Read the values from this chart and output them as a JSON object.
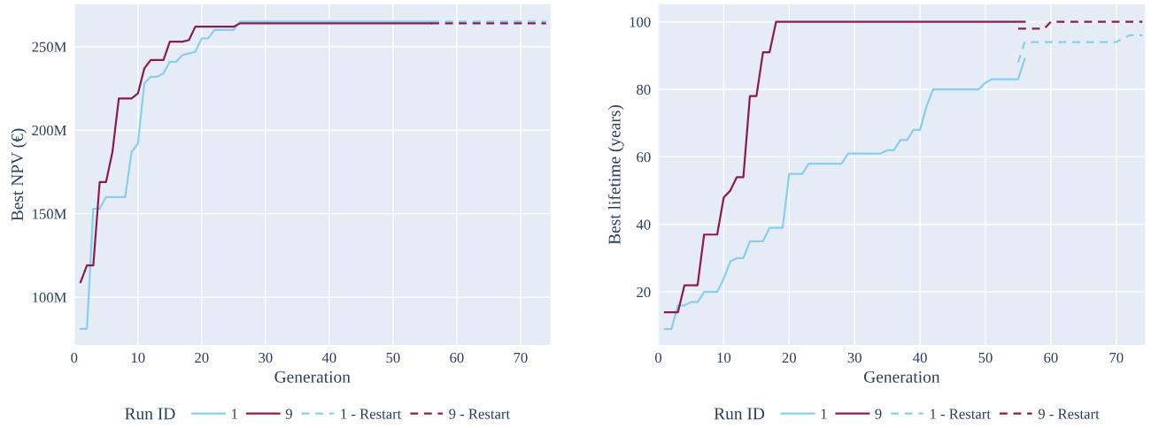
{
  "chart_data": [
    {
      "type": "line",
      "xlabel": "Generation",
      "ylabel": "Best NPV (€)",
      "legend_title": "Run ID",
      "legend": "bottom",
      "grid": true,
      "marker": "none",
      "xlim": [
        0,
        74.7
      ],
      "xticks": [
        0,
        10,
        20,
        30,
        40,
        50,
        60,
        70
      ],
      "ylim": [
        71.4,
        275.4
      ],
      "yticks": [
        {
          "value": 100,
          "label": "100M"
        },
        {
          "value": 150,
          "label": "150M"
        },
        {
          "value": 200,
          "label": "200M"
        },
        {
          "value": 250,
          "label": "250M"
        }
      ],
      "series": [
        {
          "name": "1",
          "color": "#88cfee",
          "line_style": "solid",
          "x": [
            1,
            2,
            3,
            4,
            5,
            8,
            9,
            10,
            11,
            12,
            13,
            14,
            15,
            16,
            17,
            18,
            19,
            20,
            21,
            22,
            25,
            26,
            56
          ],
          "values": [
            81,
            81,
            153,
            153,
            160,
            160,
            187,
            192,
            228,
            232,
            232,
            234,
            241,
            241,
            245,
            246,
            247,
            255,
            255,
            260,
            260,
            265,
            265
          ]
        },
        {
          "name": "9",
          "color": "#8c1c4f",
          "line_style": "solid",
          "x": [
            1,
            2,
            3,
            4,
            5,
            6,
            7,
            9,
            10,
            11,
            12,
            13,
            14,
            15,
            17,
            18,
            19,
            25,
            26,
            56
          ],
          "values": [
            109,
            119,
            119,
            169,
            169,
            187,
            219,
            219,
            222,
            237,
            242,
            242,
            242,
            253,
            253,
            254,
            262,
            262,
            264,
            264
          ]
        },
        {
          "name": "1 - Restart",
          "color": "#88cfee",
          "line_style": "dashed",
          "x": [
            56,
            74
          ],
          "values": [
            265,
            265
          ]
        },
        {
          "name": "9 - Restart",
          "color": "#8c1c4f",
          "line_style": "dashed",
          "x": [
            56,
            74
          ],
          "values": [
            264,
            264
          ]
        }
      ]
    },
    {
      "type": "line",
      "xlabel": "Generation",
      "ylabel": "Best lifetime (years)",
      "legend_title": "Run ID",
      "legend": "bottom",
      "grid": true,
      "marker": "none",
      "xlim": [
        0,
        74.4
      ],
      "xticks": [
        0,
        10,
        20,
        30,
        40,
        50,
        60,
        70
      ],
      "ylim": [
        4.3,
        105.2
      ],
      "yticks": [
        20,
        40,
        60,
        80,
        100
      ],
      "series": [
        {
          "name": "1",
          "color": "#88cfee",
          "line_style": "solid",
          "x": [
            1,
            2,
            3,
            4,
            5,
            6,
            7,
            9,
            10,
            11,
            12,
            13,
            14,
            16,
            17,
            19,
            20,
            22,
            23,
            28,
            29,
            34,
            35,
            36,
            37,
            38,
            39,
            40,
            41,
            42,
            49,
            50,
            51,
            55,
            56
          ],
          "values": [
            9,
            9,
            16,
            16,
            17,
            17,
            20,
            20,
            24,
            29,
            30,
            30,
            35,
            35,
            39,
            39,
            55,
            55,
            58,
            58,
            61,
            61,
            62,
            62,
            65,
            65,
            68,
            68,
            75,
            80,
            80,
            82,
            83,
            83,
            89
          ]
        },
        {
          "name": "9",
          "color": "#8c1c4f",
          "line_style": "solid",
          "x": [
            1,
            3,
            4,
            6,
            7,
            9,
            10,
            11,
            12,
            13,
            14,
            15,
            16,
            17,
            18,
            56
          ],
          "values": [
            14,
            14,
            22,
            22,
            37,
            37,
            48,
            50,
            54,
            54,
            78,
            78,
            91,
            91,
            100,
            100
          ]
        },
        {
          "name": "1 - Restart",
          "color": "#88cfee",
          "line_style": "dashed",
          "x": [
            55,
            56,
            70,
            72,
            74
          ],
          "values": [
            88,
            94,
            94,
            96,
            96
          ]
        },
        {
          "name": "9 - Restart",
          "color": "#8c1c4f",
          "line_style": "dashed",
          "x": [
            55,
            59,
            60,
            74
          ],
          "values": [
            98,
            98,
            100,
            100
          ]
        }
      ]
    }
  ]
}
